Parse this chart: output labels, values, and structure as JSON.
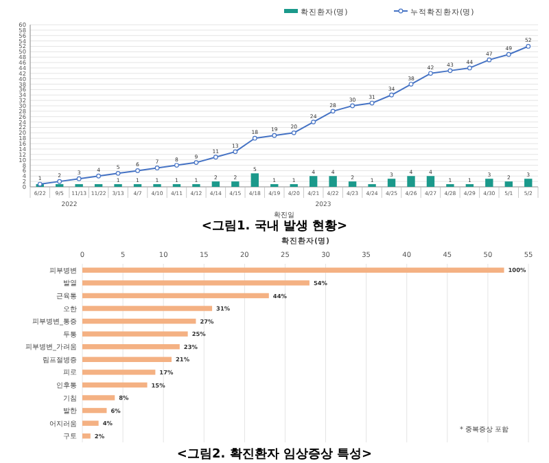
{
  "chart_data": [
    {
      "type": "bar",
      "title": "<그림1. 국내 발생 현황>",
      "xlabel": "확진일",
      "categories": [
        "6/22",
        "9/5",
        "11/13",
        "11/22",
        "3/13",
        "4/7",
        "4/10",
        "4/11",
        "4/12",
        "4/14",
        "4/15",
        "4/18",
        "4/19",
        "4/20",
        "4/21",
        "4/22",
        "4/23",
        "4/24",
        "4/25",
        "4/26",
        "4/27",
        "4/28",
        "4/29",
        "4/30",
        "5/1",
        "5/2"
      ],
      "series": [
        {
          "name": "확진환자(명)",
          "color": "#1b998b",
          "values": [
            1,
            1,
            1,
            1,
            1,
            1,
            1,
            1,
            1,
            2,
            2,
            5,
            1,
            1,
            4,
            4,
            2,
            1,
            3,
            4,
            4,
            1,
            1,
            3,
            2,
            3
          ],
          "value_labels": [
            null,
            null,
            null,
            null,
            "1",
            "1",
            "1",
            "1",
            "1",
            "2",
            "2",
            "5",
            "1",
            "1",
            "4",
            "4",
            "2",
            "1",
            "3",
            "4",
            "4",
            "1",
            "1",
            "3",
            "2",
            "3"
          ]
        },
        {
          "name": "누적확진환자(명)",
          "type": "line",
          "color": "#4472c4",
          "marker": "circle",
          "values": [
            1,
            2,
            3,
            4,
            5,
            6,
            7,
            8,
            9,
            11,
            13,
            18,
            19,
            20,
            24,
            28,
            30,
            31,
            34,
            38,
            42,
            43,
            44,
            47,
            49,
            52
          ],
          "value_labels": [
            "1",
            "2",
            "3",
            "4",
            "5",
            "6",
            "7",
            "8",
            "9",
            "11",
            "13",
            "18",
            "19",
            "20",
            "24",
            "28",
            "30",
            "31",
            "34",
            "38",
            "42",
            "43",
            "44",
            "47",
            "49",
            "52"
          ]
        }
      ],
      "ylim": [
        0,
        60
      ],
      "yticks": [
        0,
        2,
        4,
        6,
        8,
        10,
        12,
        14,
        16,
        18,
        20,
        22,
        24,
        26,
        28,
        30,
        32,
        34,
        36,
        38,
        40,
        42,
        44,
        46,
        48,
        50,
        52,
        54,
        56,
        58,
        60
      ],
      "grid": "y",
      "legend": "top right",
      "annotations": [
        "2022",
        "2023"
      ]
    },
    {
      "type": "bar",
      "orientation": "horizontal",
      "title": "<그림2. 확진환자 임상증상 특성>",
      "xlabel": "확진환자(명)",
      "categories": [
        "피부병변",
        "발열",
        "근육통",
        "오한",
        "피부병변_통증",
        "두통",
        "피부병변_가려움",
        "림프절병증",
        "피로",
        "인후통",
        "기침",
        "발한",
        "어지러움",
        "구토"
      ],
      "values": [
        52,
        28,
        23,
        16,
        14,
        13,
        12,
        11,
        9,
        8,
        4,
        3,
        2,
        1
      ],
      "color": "#f4b183",
      "xlim": [
        0,
        55
      ],
      "xticks": [
        0,
        5,
        10,
        15,
        20,
        25,
        30,
        35,
        40,
        45,
        50,
        55
      ],
      "grid": "x",
      "annotations": [
        "* 중복증상 포함",
        {
          "text": "100%",
          "x": 52,
          "y": "피부병변"
        },
        {
          "text": "54%",
          "x": 28,
          "y": "발열"
        },
        {
          "text": "44%",
          "x": 23,
          "y": "근육통"
        },
        {
          "text": "31%",
          "x": 16,
          "y": "오한"
        },
        {
          "text": "27%",
          "x": 14,
          "y": "피부병변_통증"
        },
        {
          "text": "25%",
          "x": 13,
          "y": "두통"
        },
        {
          "text": "23%",
          "x": 12,
          "y": "피부병변_가려움"
        },
        {
          "text": "21%",
          "x": 11,
          "y": "림프절병증"
        },
        {
          "text": "17%",
          "x": 9,
          "y": "피로"
        },
        {
          "text": "15%",
          "x": 8,
          "y": "인후통"
        },
        {
          "text": "8%",
          "x": 4,
          "y": "기침"
        },
        {
          "text": "6%",
          "x": 3,
          "y": "발한"
        },
        {
          "text": "4%",
          "x": 2,
          "y": "어지러움"
        },
        {
          "text": "2%",
          "x": 1,
          "y": "구토"
        }
      ]
    }
  ]
}
